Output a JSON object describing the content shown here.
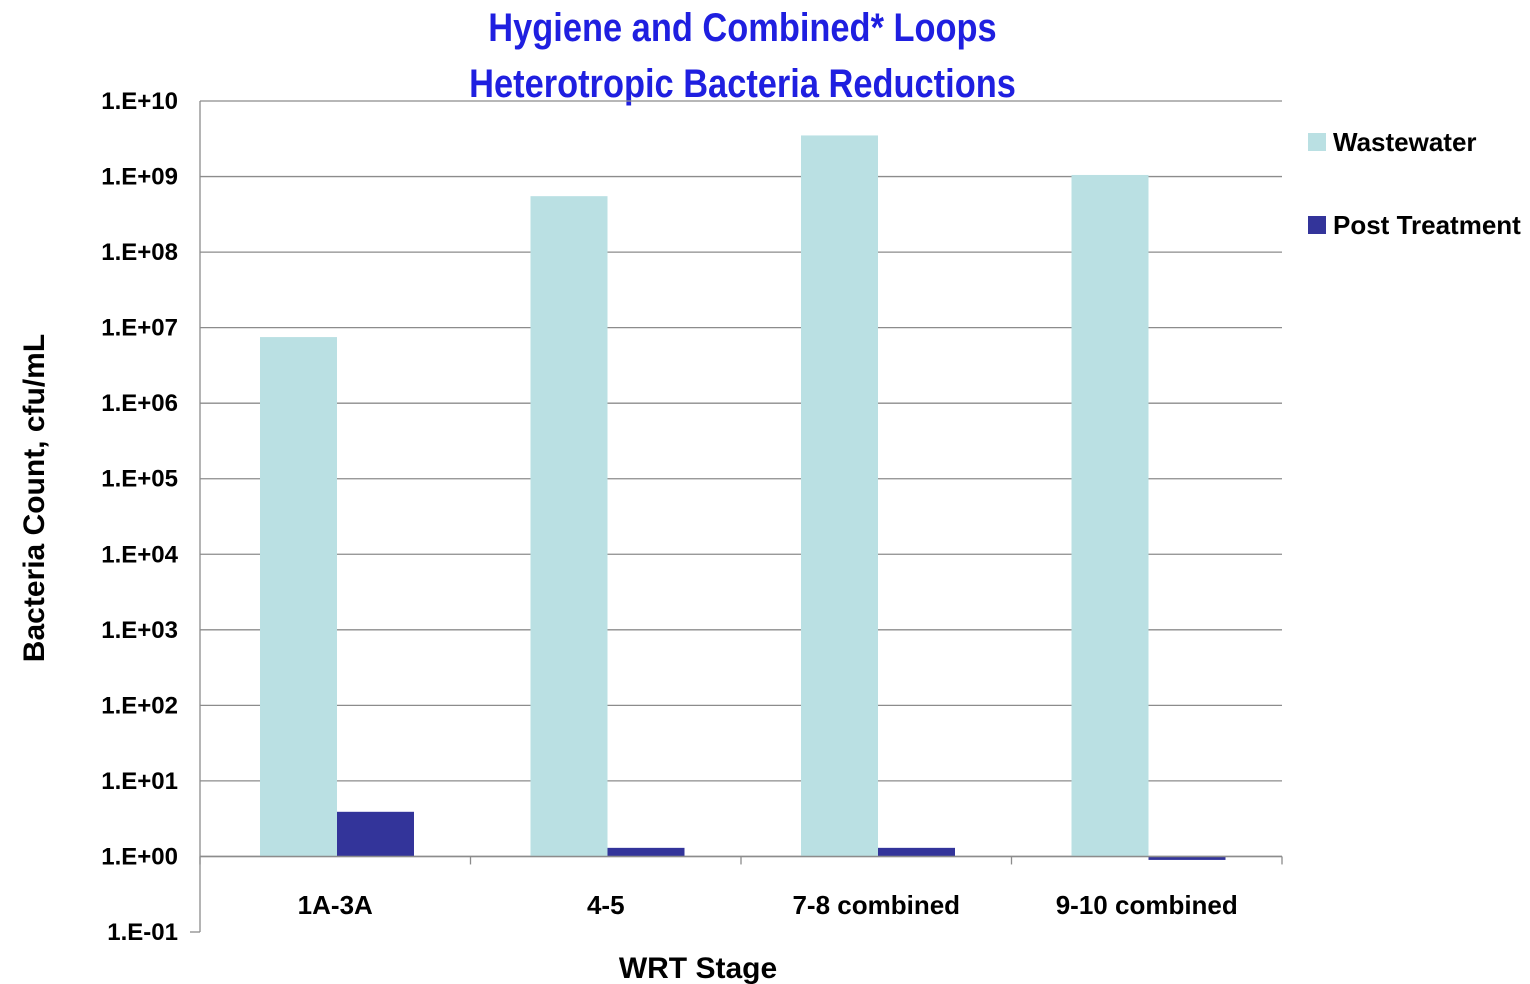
{
  "chart_data": {
    "type": "bar",
    "title": "Hygiene and Combined* Loops",
    "subtitle": "Heterotropic Bacteria Reductions",
    "xlabel": "WRT Stage",
    "ylabel": "Bacteria Count, cfu/mL",
    "yscale": "log",
    "ylim": [
      0.1,
      10000000000
    ],
    "ytick_labels": [
      "1.E-01",
      "1.E+00",
      "1.E+01",
      "1.E+02",
      "1.E+03",
      "1.E+04",
      "1.E+05",
      "1.E+06",
      "1.E+07",
      "1.E+08",
      "1.E+09",
      "1.E+10"
    ],
    "categories": [
      "1A-3A",
      "4-5",
      "7-8 combined",
      "9-10 combined"
    ],
    "series": [
      {
        "name": "Wastewater",
        "color": "#bae0e3",
        "values": [
          7500000,
          550000000,
          3500000000,
          1050000000
        ]
      },
      {
        "name": "Post Treatment",
        "color": "#33349a",
        "values": [
          3.9,
          1.3,
          1.3,
          0.9
        ]
      }
    ],
    "grid": true,
    "gridline_color": "#8c8c8c",
    "legend_position": "right",
    "title_color": "#1f1fe0"
  }
}
